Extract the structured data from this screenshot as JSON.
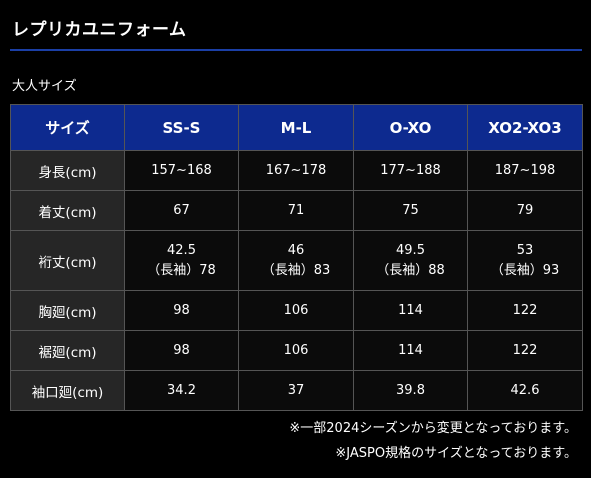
{
  "title": "レプリカユニフォーム",
  "section_label": "大人サイズ",
  "colors": {
    "header_bg": "#0d2a8f",
    "rule": "#1b3fa6",
    "row_label_bg": "#262626",
    "cell_bg": "#0b0b0b",
    "page_bg": "#000000"
  },
  "table": {
    "headers": [
      "サイズ",
      "SS-S",
      "M-L",
      "O-XO",
      "XO2-XO3"
    ],
    "rows": [
      {
        "label": "身長(cm)",
        "cells": [
          [
            "157~168"
          ],
          [
            "167~178"
          ],
          [
            "177~188"
          ],
          [
            "187~198"
          ]
        ]
      },
      {
        "label": "着丈(cm)",
        "cells": [
          [
            "67"
          ],
          [
            "71"
          ],
          [
            "75"
          ],
          [
            "79"
          ]
        ]
      },
      {
        "label": "裄丈(cm)",
        "cells": [
          [
            "42.5",
            "（長袖）78"
          ],
          [
            "46",
            "（長袖）83"
          ],
          [
            "49.5",
            "（長袖）88"
          ],
          [
            "53",
            "（長袖）93"
          ]
        ]
      },
      {
        "label": "胸廻(cm)",
        "cells": [
          [
            "98"
          ],
          [
            "106"
          ],
          [
            "114"
          ],
          [
            "122"
          ]
        ]
      },
      {
        "label": "裾廻(cm)",
        "cells": [
          [
            "98"
          ],
          [
            "106"
          ],
          [
            "114"
          ],
          [
            "122"
          ]
        ]
      },
      {
        "label": "袖口廻(cm)",
        "cells": [
          [
            "34.2"
          ],
          [
            "37"
          ],
          [
            "39.8"
          ],
          [
            "42.6"
          ]
        ]
      }
    ]
  },
  "notes": [
    "※一部2024シーズンから変更となっております。",
    "※JASPO規格のサイズとなっております。"
  ]
}
